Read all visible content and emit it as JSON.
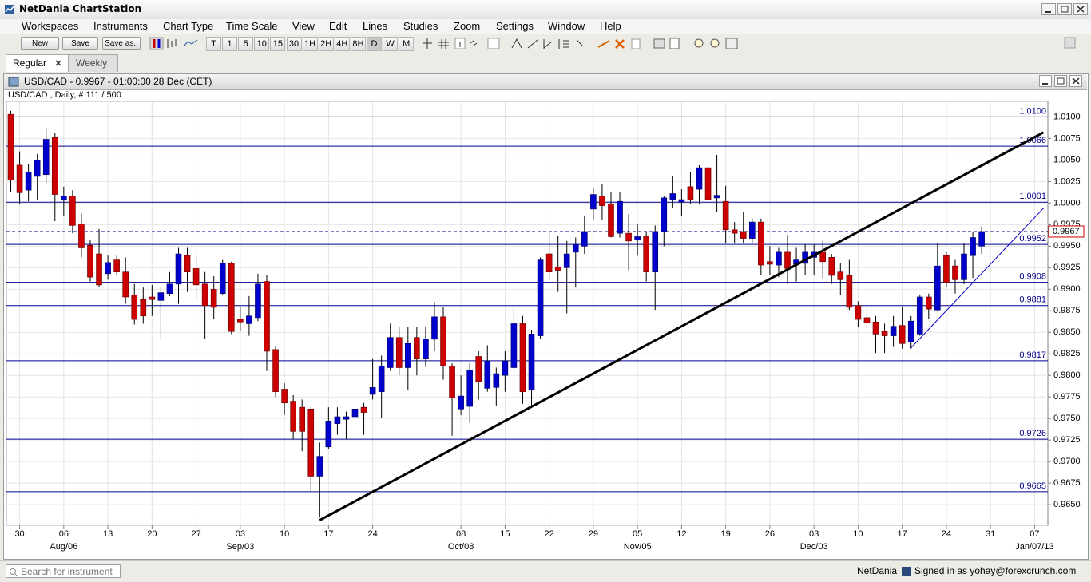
{
  "app": {
    "title": "NetDania ChartStation",
    "menu": [
      "Workspaces",
      "Instruments",
      "Chart Type",
      "Time Scale",
      "View",
      "Edit",
      "Lines",
      "Studies",
      "Zoom",
      "Settings",
      "Window",
      "Help"
    ],
    "buttons": [
      "New",
      "Save",
      "Save as.."
    ],
    "periods": [
      "T",
      "1",
      "5",
      "10",
      "15",
      "30",
      "1H",
      "2H",
      "4H",
      "8H",
      "D",
      "W",
      "M"
    ],
    "tabs": [
      "Regular",
      "Weekly"
    ],
    "window_title": "USD/CAD - 0.9967 - 01:00:00  28 Dec (CET)",
    "search_placeholder": "Search for instrument",
    "brand": "NetDania",
    "signed_in": "Signed in as yohay@forexcrunch.com"
  },
  "chart_data": {
    "type": "candlestick",
    "title": "USD/CAD , Daily, # 111 / 500",
    "up_color": "#0000cc",
    "down_color": "#cc0000",
    "categories": [
      null,
      "30",
      null,
      null,
      null,
      null,
      "06",
      null,
      null,
      null,
      null,
      "13",
      null,
      null,
      null,
      null,
      "20",
      null,
      null,
      null,
      null,
      "27",
      null,
      null,
      null,
      null,
      "03",
      null,
      null,
      null,
      null,
      "10",
      null,
      null,
      null,
      null,
      "17",
      null,
      null,
      null,
      null,
      "24",
      null,
      null,
      null,
      null,
      null,
      null,
      null,
      null,
      null,
      "08",
      null,
      null,
      null,
      null,
      "15",
      null,
      null,
      null,
      null,
      "22",
      null,
      null,
      null,
      null,
      "29",
      null,
      null,
      null,
      null,
      "05",
      null,
      null,
      null,
      null,
      "12",
      null,
      null,
      null,
      null,
      "19",
      null,
      null,
      null,
      null,
      "26",
      null,
      null,
      null,
      null,
      "03",
      null,
      null,
      null,
      null,
      "10",
      null,
      null,
      null,
      null,
      "17",
      null,
      null,
      null,
      null,
      "24",
      null,
      null,
      null,
      null,
      "31",
      null,
      null,
      null,
      null,
      "07",
      null
    ],
    "category_months": [
      null,
      null,
      null,
      null,
      null,
      null,
      "Aug/06",
      null,
      null,
      null,
      null,
      null,
      null,
      null,
      null,
      null,
      null,
      null,
      null,
      null,
      null,
      null,
      null,
      null,
      null,
      null,
      "Sep/03",
      null,
      null,
      null,
      null,
      null,
      null,
      null,
      null,
      null,
      null,
      null,
      null,
      null,
      null,
      null,
      null,
      null,
      null,
      null,
      null,
      null,
      null,
      null,
      null,
      "Oct/08",
      null,
      null,
      null,
      null,
      null,
      null,
      null,
      null,
      null,
      null,
      null,
      null,
      null,
      null,
      null,
      null,
      null,
      null,
      null,
      "Nov/05",
      null,
      null,
      null,
      null,
      null,
      null,
      null,
      null,
      null,
      null,
      null,
      null,
      null,
      null,
      null,
      null,
      null,
      null,
      null,
      "Dec/03",
      null,
      null,
      null,
      null,
      null,
      null,
      null,
      null,
      null,
      null,
      null,
      null,
      null,
      null,
      null,
      null,
      null,
      null,
      null,
      null,
      null,
      null,
      null,
      null,
      "Jan/07/13",
      null
    ],
    "open": [
      1.0103,
      1.0044,
      1.0015,
      1.0031,
      1.0033,
      1.0076,
      1.0004,
      1.0008,
      0.9976,
      0.9951,
      0.9941,
      0.9918,
      0.9934,
      0.992,
      0.9893,
      0.9888,
      0.9891,
      0.9887,
      0.9895,
      0.9906,
      0.9939,
      0.9924,
      0.9906,
      0.99,
      0.9895,
      0.993,
      0.9865,
      0.986,
      0.9867,
      0.9909,
      0.983,
      0.9784,
      0.977,
      0.9763,
      0.9761,
      0.9683,
      0.9717,
      0.9744,
      0.9749,
      0.9752,
      0.9763,
      0.9778,
      0.9781,
      0.9809,
      0.9844,
      0.9809,
      0.9844,
      0.9819,
      0.9842,
      0.9868,
      0.9811,
      0.9761,
      0.9764,
      0.9822,
      0.9785,
      0.9786,
      0.98,
      0.9809,
      0.986,
      0.9783,
      0.9846,
      0.9941,
      0.9926,
      0.9925,
      0.9943,
      0.995,
      0.9993,
      1.0008,
      0.9999,
      0.9965,
      0.9965,
      0.9957,
      0.9961,
      0.992,
      0.9967,
      1.0004,
      1.0001,
      1.0019,
      1.0016,
      1.0041,
      1.0006,
      1.0002,
      0.9969,
      0.9967,
      0.9959,
      0.9978,
      0.9932,
      0.9928,
      0.9943,
      0.9929,
      0.993,
      0.9937,
      0.9943,
      0.9937,
      0.992,
      0.9916,
      0.9881,
      0.9867,
      0.9862,
      0.9851,
      0.9846,
      0.9858,
      0.9839,
      0.9848,
      0.9891,
      0.9876,
      0.9939,
      0.9927,
      0.9911,
      0.9939,
      0.995,
      null,
      null,
      null,
      null,
      null,
      null,
      null
    ],
    "high": [
      1.0107,
      1.006,
      1.0045,
      1.0057,
      1.0087,
      1.0081,
      1.0019,
      1.0015,
      0.9988,
      0.9957,
      0.997,
      0.9939,
      0.9939,
      0.9937,
      0.9906,
      0.9902,
      0.9905,
      0.9902,
      0.992,
      0.9948,
      0.9948,
      0.9939,
      0.992,
      0.9915,
      0.9934,
      0.9932,
      0.9879,
      0.9892,
      0.9918,
      0.9916,
      0.9834,
      0.9791,
      0.9777,
      0.9772,
      0.9763,
      0.9722,
      0.9763,
      0.9763,
      0.9758,
      0.9819,
      0.9768,
      0.9819,
      0.9823,
      0.986,
      0.9856,
      0.9856,
      0.9856,
      0.9856,
      0.9885,
      0.9879,
      0.9814,
      0.98,
      0.9814,
      0.9828,
      0.9835,
      0.9809,
      0.9828,
      0.9879,
      0.9869,
      0.9853,
      0.9937,
      0.9967,
      0.9962,
      0.9956,
      0.996,
      0.9985,
      1.0018,
      1.0022,
      1.0013,
      1.0013,
      0.9987,
      0.9976,
      0.9967,
      0.9974,
      1.0008,
      1.0031,
      1.0016,
      1.0036,
      1.0044,
      1.0043,
      1.0056,
      1.002,
      0.9978,
      0.999,
      0.9982,
      0.9982,
      0.995,
      0.9948,
      0.9963,
      0.9948,
      0.9952,
      0.9952,
      0.9956,
      0.9941,
      0.993,
      0.9934,
      0.9886,
      0.9879,
      0.9869,
      0.986,
      0.9869,
      0.988,
      0.9869,
      0.9894,
      0.9895,
      0.9953,
      0.9943,
      0.9934,
      0.9953,
      0.9967,
      0.9973,
      null,
      null,
      null,
      null,
      null,
      null,
      null
    ],
    "low": [
      1.0013,
      0.9999,
      1.0002,
      1.0004,
      1.0024,
      0.9979,
      0.9985,
      0.9965,
      0.9937,
      0.9909,
      0.9903,
      0.9911,
      0.9916,
      0.9883,
      0.9859,
      0.986,
      0.9869,
      0.9842,
      0.9892,
      0.9883,
      0.9897,
      0.9888,
      0.9842,
      0.9865,
      0.9893,
      0.9848,
      0.9851,
      0.9846,
      0.9863,
      0.9805,
      0.9775,
      0.9754,
      0.9726,
      0.9712,
      0.9666,
      0.9635,
      0.9714,
      0.9731,
      0.9726,
      0.9735,
      0.9731,
      0.9772,
      0.9751,
      0.9805,
      0.98,
      0.9783,
      0.98,
      0.981,
      0.9828,
      0.9795,
      0.973,
      0.9754,
      0.9745,
      0.9772,
      0.9781,
      0.9765,
      0.9781,
      0.9805,
      0.9767,
      0.9763,
      0.9842,
      0.9911,
      0.9897,
      0.9872,
      0.9902,
      0.9941,
      0.9981,
      0.9981,
      0.996,
      0.996,
      0.9922,
      0.9939,
      0.9909,
      0.9876,
      0.995,
      0.9994,
      0.9985,
      0.9999,
      0.9999,
      0.9999,
      0.999,
      0.9953,
      0.9953,
      0.9953,
      0.9953,
      0.9916,
      0.9916,
      0.9914,
      0.9906,
      0.9909,
      0.9916,
      0.9916,
      0.9913,
      0.9906,
      0.9893,
      0.9876,
      0.9856,
      0.9851,
      0.9826,
      0.9826,
      0.9833,
      0.9831,
      0.9831,
      0.9846,
      0.9865,
      0.9874,
      0.9902,
      0.9895,
      0.9906,
      0.9913,
      0.9941,
      null,
      null,
      null,
      null,
      null,
      null,
      null
    ],
    "close": [
      1.0027,
      1.0012,
      1.0036,
      1.005,
      1.0074,
      1.001,
      1.0008,
      0.9974,
      0.9948,
      0.9914,
      0.9905,
      0.9931,
      0.992,
      0.9891,
      0.9865,
      0.9869,
      0.9888,
      0.9896,
      0.9906,
      0.9941,
      0.992,
      0.9905,
      0.9881,
      0.9879,
      0.993,
      0.9851,
      0.9862,
      0.9869,
      0.9906,
      0.9828,
      0.9781,
      0.9768,
      0.9735,
      0.9735,
      0.9683,
      0.9706,
      0.9747,
      0.9752,
      0.9752,
      0.9761,
      0.9757,
      0.9786,
      0.9811,
      0.9844,
      0.9809,
      0.9837,
      0.9819,
      0.9842,
      0.9868,
      0.9811,
      0.9774,
      0.9776,
      0.9806,
      0.9793,
      0.9817,
      0.9802,
      0.9817,
      0.986,
      0.9781,
      0.9848,
      0.9934,
      0.992,
      0.9922,
      0.9941,
      0.9952,
      0.9967,
      1.001,
      0.9997,
      0.9961,
      1.0002,
      0.9956,
      0.9961,
      0.992,
      0.9967,
      1.0006,
      1.0011,
      1.0004,
      1.0004,
      1.0041,
      1.0004,
      1.0009,
      0.9969,
      0.9965,
      0.9959,
      0.9978,
      0.9928,
      0.9929,
      0.9943,
      0.9924,
      0.9934,
      0.9943,
      0.9943,
      0.9932,
      0.9916,
      0.9911,
      0.9879,
      0.9865,
      0.9861,
      0.9848,
      0.9846,
      0.9857,
      0.9837,
      0.9863,
      0.9891,
      0.9877,
      0.9927,
      0.9908,
      0.9911,
      0.9941,
      0.996,
      0.9967,
      null,
      null,
      null,
      null,
      null,
      null,
      null
    ],
    "ylim": [
      0.9626,
      1.0118
    ],
    "yticks": [
      {
        "value": 1.01,
        "label": "1.0100"
      },
      {
        "value": 1.0075,
        "label": "1.0075"
      },
      {
        "value": 1.005,
        "label": "1.0050"
      },
      {
        "value": 1.0025,
        "label": "1.0025"
      },
      {
        "value": 1.0,
        "label": "1.0000"
      },
      {
        "value": 0.9975,
        "label": "0.9975"
      },
      {
        "value": 0.995,
        "label": "0.9950"
      },
      {
        "value": 0.9925,
        "label": "0.9925"
      },
      {
        "value": 0.99,
        "label": "0.9900"
      },
      {
        "value": 0.9875,
        "label": "0.9875"
      },
      {
        "value": 0.985,
        "label": "0.9850"
      },
      {
        "value": 0.9825,
        "label": "0.9825"
      },
      {
        "value": 0.98,
        "label": "0.9800"
      },
      {
        "value": 0.9775,
        "label": "0.9775"
      },
      {
        "value": 0.975,
        "label": "0.9750"
      },
      {
        "value": 0.9725,
        "label": "0.9725"
      },
      {
        "value": 0.97,
        "label": "0.9700"
      },
      {
        "value": 0.9675,
        "label": "0.9675"
      },
      {
        "value": 0.965,
        "label": "0.9650"
      }
    ],
    "grid": true,
    "level_color": "#00008b",
    "levels": [
      {
        "value": 1.01,
        "label": "1.0100"
      },
      {
        "value": 1.0066,
        "label": "1.0066"
      },
      {
        "value": 1.0001,
        "label": "1.0001"
      },
      {
        "value": 0.9952,
        "label": "0.9952"
      },
      {
        "value": 0.9908,
        "label": "0.9908"
      },
      {
        "value": 0.9881,
        "label": "0.9881"
      },
      {
        "value": 0.9817,
        "label": "0.9817"
      },
      {
        "value": 0.9726,
        "label": "0.9726"
      },
      {
        "value": 0.9665,
        "label": "0.9665"
      }
    ],
    "last_price": {
      "value": 0.9967,
      "label": "0.9967"
    },
    "trend_lines": [
      {
        "x": [
          35,
          117
        ],
        "y": [
          0.9632,
          1.0082
        ],
        "color": "#000000",
        "width": 3
      },
      {
        "x": [
          102,
          117
        ],
        "y": [
          0.9832,
          0.9994
        ],
        "color": "#0000cc",
        "width": 1
      }
    ]
  }
}
